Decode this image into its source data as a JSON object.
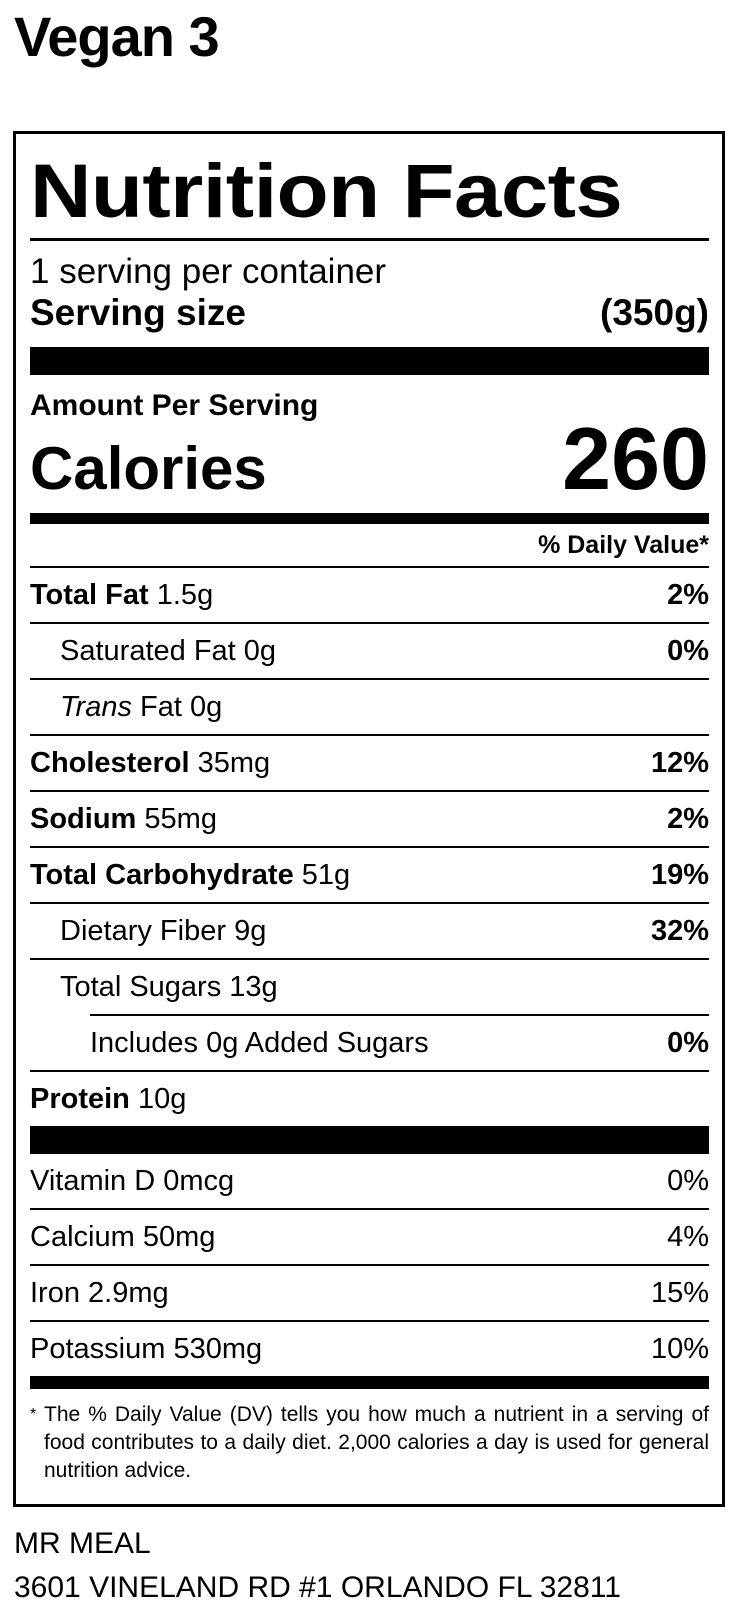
{
  "product_title": "Vegan 3",
  "label": {
    "heading": "Nutrition Facts",
    "servings_per_container": "1 serving per container",
    "serving_size_label": "Serving size",
    "serving_size_value": "(350g)",
    "amount_per_serving": "Amount Per Serving",
    "calories_label": "Calories",
    "calories_value": "260",
    "daily_value_header": "% Daily Value*",
    "nutrients": [
      {
        "name": "Total Fat",
        "amount": "1.5g",
        "dv": "2%"
      },
      {
        "name": "Saturated Fat",
        "amount": "0g",
        "dv": "0%"
      },
      {
        "name": "Trans",
        "name_rest": "Fat",
        "amount": "0g",
        "dv": ""
      },
      {
        "name": "Cholesterol",
        "amount": "35mg",
        "dv": "12%"
      },
      {
        "name": "Sodium",
        "amount": "55mg",
        "dv": "2%"
      },
      {
        "name": "Total Carbohydrate",
        "amount": "51g",
        "dv": "19%"
      },
      {
        "name": "Dietary Fiber",
        "amount": "9g",
        "dv": "32%"
      },
      {
        "name": "Total Sugars",
        "amount": "13g",
        "dv": ""
      },
      {
        "name": "Includes 0g Added Sugars",
        "amount": "",
        "dv": "0%"
      },
      {
        "name": "Protein",
        "amount": "10g",
        "dv": ""
      }
    ],
    "vitamins": [
      {
        "name": "Vitamin D",
        "amount": "0mcg",
        "dv": "0%"
      },
      {
        "name": "Calcium",
        "amount": "50mg",
        "dv": "4%"
      },
      {
        "name": "Iron",
        "amount": "2.9mg",
        "dv": "15%"
      },
      {
        "name": "Potassium",
        "amount": "530mg",
        "dv": "10%"
      }
    ],
    "footnote_mark": "*",
    "footnote": "The % Daily Value (DV) tells you how much a nutrient in a serving of food contributes to a daily diet. 2,000 calories a day is used for general nutrition advice."
  },
  "manufacturer": {
    "name": "MR MEAL",
    "address": "3601 VINELAND RD #1 ORLANDO FL 32811"
  }
}
